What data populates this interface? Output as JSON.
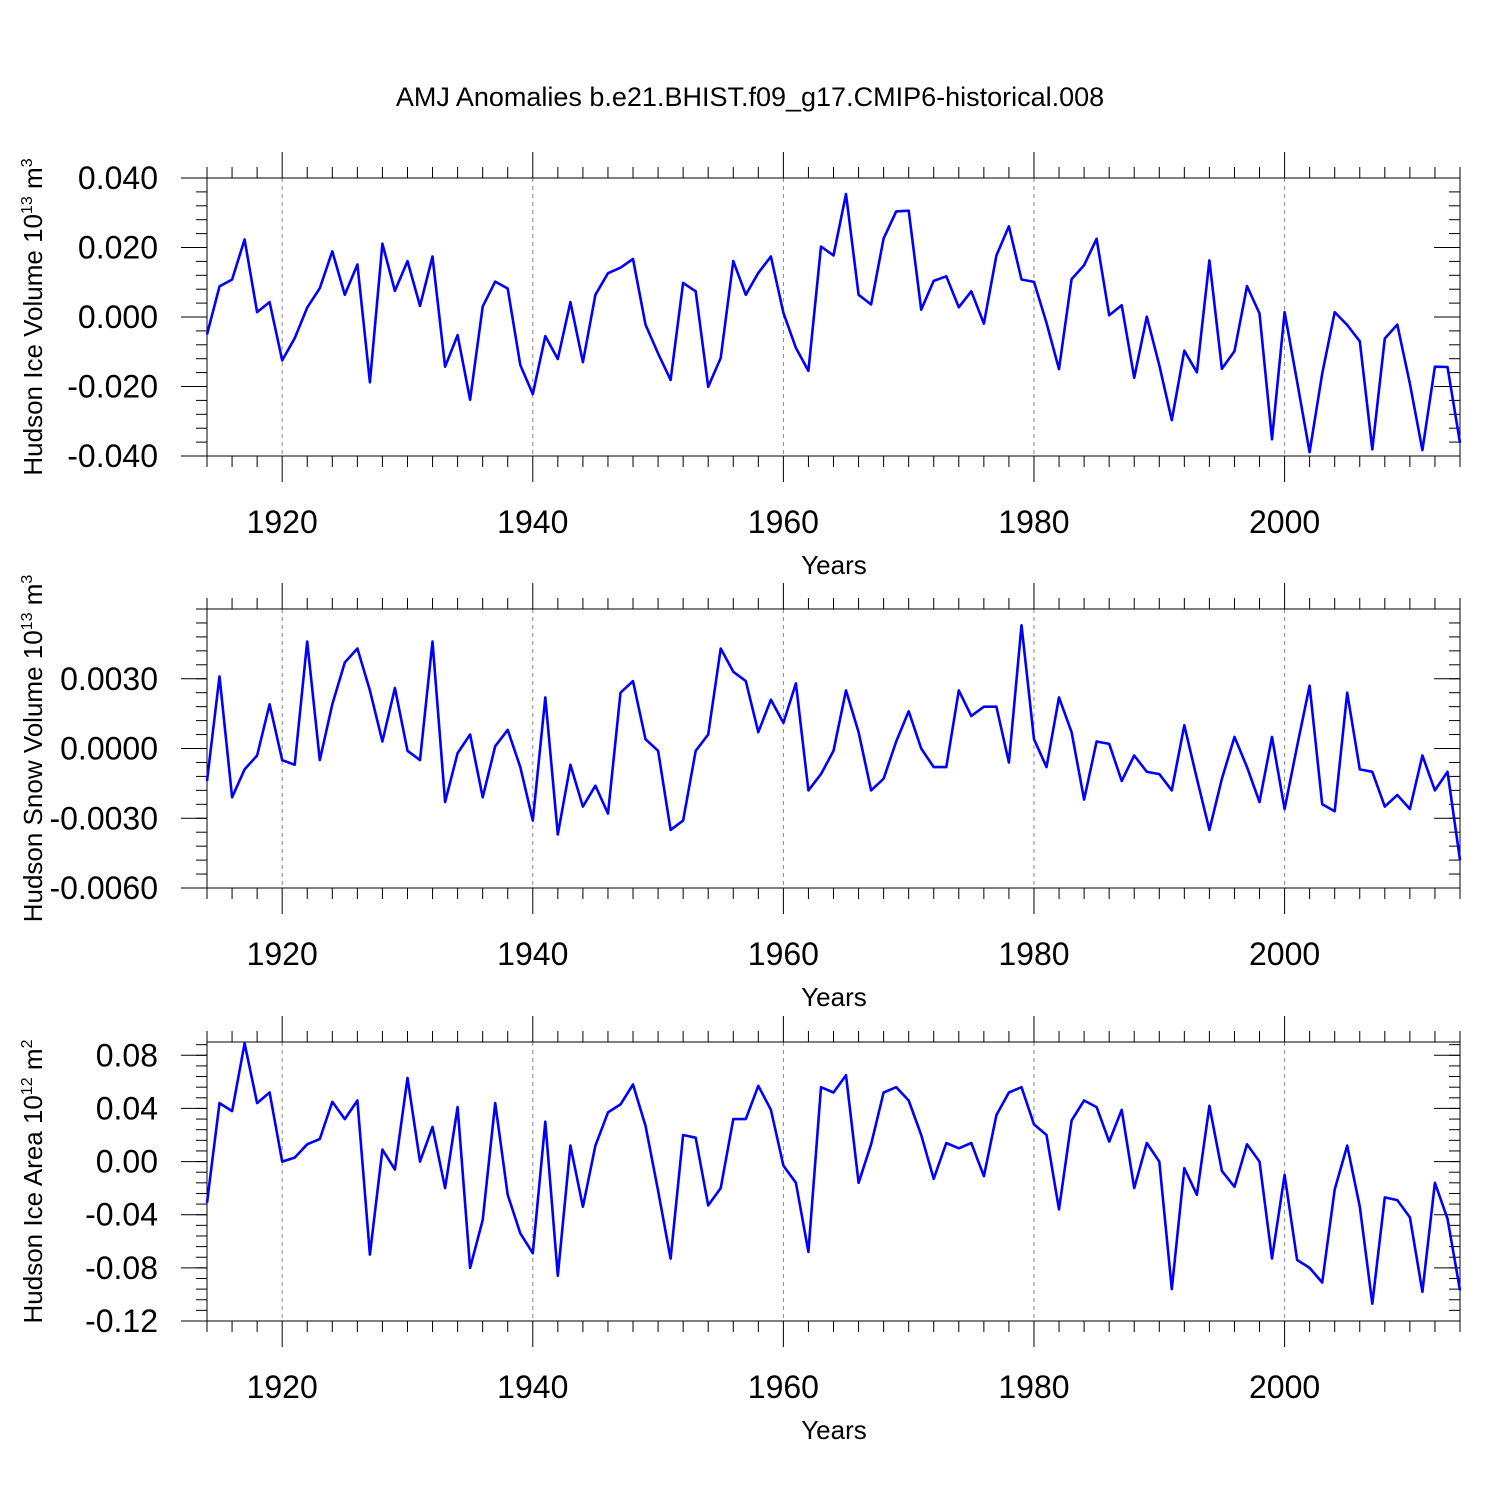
{
  "title": "AMJ Anomalies b.e21.BHIST.f09_g17.CMIP6-historical.008",
  "chart_data": [
    {
      "type": "line",
      "panel": "hudson-ice-volume",
      "title": "AMJ Anomalies b.e21.BHIST.f09_g17.CMIP6-historical.008",
      "xlabel": "Years",
      "ylabel_base": "Hudson Ice Volume 10",
      "ylabel_exp": "13",
      "ylabel_unit": " m",
      "ylabel_unit_exp": "3",
      "xlim": [
        1914,
        2014
      ],
      "ylim": [
        -0.04,
        0.04
      ],
      "x_ticks": [
        1920,
        1940,
        1960,
        1980,
        2000
      ],
      "x_tick_labels": [
        "1920",
        "1940",
        "1960",
        "1980",
        "2000"
      ],
      "y_ticks": [
        -0.04,
        -0.02,
        0.0,
        0.02,
        0.04
      ],
      "y_tick_labels": [
        "-0.040",
        "-0.020",
        "0.000",
        "0.020",
        "0.040"
      ],
      "y_minor_step": 0.004,
      "color": "#0000ff",
      "x_start": 1914,
      "values": [
        -0.005,
        0.0088,
        0.0108,
        0.0223,
        0.0014,
        0.0043,
        -0.0125,
        -0.0061,
        0.0027,
        0.0083,
        0.0189,
        0.0064,
        0.0151,
        -0.0188,
        0.0211,
        0.0075,
        0.0161,
        0.0032,
        0.0174,
        -0.0143,
        -0.0052,
        -0.0238,
        0.003,
        0.0102,
        0.0082,
        -0.0138,
        -0.0222,
        -0.0055,
        -0.0121,
        0.0043,
        -0.013,
        0.0064,
        0.0126,
        0.0142,
        0.0167,
        -0.0022,
        -0.0105,
        -0.0181,
        0.0098,
        0.0074,
        -0.0201,
        -0.0118,
        0.0161,
        0.0064,
        0.0127,
        0.0174,
        0.0012,
        -0.0089,
        -0.0155,
        0.0203,
        0.0177,
        0.0354,
        0.0064,
        0.0036,
        0.0226,
        0.0304,
        0.0306,
        0.0021,
        0.0104,
        0.0117,
        0.0028,
        0.0074,
        -0.0019,
        0.0177,
        0.0261,
        0.0108,
        0.0101,
        -0.0017,
        -0.015,
        0.0109,
        0.0149,
        0.0225,
        0.0005,
        0.0034,
        -0.0175,
        0.0001,
        -0.0139,
        -0.0297,
        -0.0097,
        -0.0159,
        0.0163,
        -0.0149,
        -0.0098,
        0.0089,
        0.001,
        -0.0352,
        0.0014,
        -0.0186,
        -0.0389,
        -0.0163,
        0.0014,
        -0.0023,
        -0.007,
        -0.0381,
        -0.0062,
        -0.0022,
        -0.0192,
        -0.0383,
        -0.0143,
        -0.0144,
        -0.0362
      ]
    },
    {
      "type": "line",
      "panel": "hudson-snow-volume",
      "xlabel": "Years",
      "ylabel_base": "Hudson Snow Volume 10",
      "ylabel_exp": "13",
      "ylabel_unit": " m",
      "ylabel_unit_exp": "3",
      "xlim": [
        1914,
        2014
      ],
      "ylim": [
        -0.006,
        0.006
      ],
      "x_ticks": [
        1920,
        1940,
        1960,
        1980,
        2000
      ],
      "x_tick_labels": [
        "1920",
        "1940",
        "1960",
        "1980",
        "2000"
      ],
      "y_ticks": [
        -0.006,
        -0.003,
        0.0,
        0.003
      ],
      "y_tick_labels": [
        "-0.0060",
        "-0.0030",
        "0.0000",
        "0.0030"
      ],
      "y_minor_step": 0.0006,
      "color": "#0000ff",
      "x_start": 1914,
      "values": [
        -0.0014,
        0.0031,
        -0.0021,
        -0.0009,
        -0.0003,
        0.0019,
        -0.0005,
        -0.0007,
        0.0046,
        -0.0005,
        0.0019,
        0.0037,
        0.0043,
        0.0025,
        0.0003,
        0.0026,
        -0.0001,
        -0.0005,
        0.0046,
        -0.0023,
        -0.0002,
        0.0006,
        -0.0021,
        0.0001,
        0.0008,
        -0.0008,
        -0.0031,
        0.0022,
        -0.0037,
        -0.0007,
        -0.0025,
        -0.0016,
        -0.0028,
        0.0024,
        0.0029,
        0.0004,
        -0.0001,
        -0.0035,
        -0.0031,
        -0.0001,
        0.0006,
        0.0043,
        0.0033,
        0.0029,
        0.0007,
        0.0021,
        0.0011,
        0.0028,
        -0.0018,
        -0.0011,
        -0.0001,
        0.0025,
        0.0007,
        -0.0018,
        -0.0013,
        0.0003,
        0.0016,
        0.0,
        -0.0008,
        -0.0008,
        0.0025,
        0.0014,
        0.0018,
        0.0018,
        -0.0006,
        0.0053,
        0.0004,
        -0.0008,
        0.0022,
        0.0007,
        -0.0022,
        0.0003,
        0.0002,
        -0.0014,
        -0.0003,
        -0.001,
        -0.0011,
        -0.0018,
        0.001,
        -0.0013,
        -0.0035,
        -0.0013,
        0.0005,
        -0.0008,
        -0.0023,
        0.0005,
        -0.0026,
        0.0001,
        0.0027,
        -0.0024,
        -0.0027,
        0.0024,
        -0.0009,
        -0.001,
        -0.0025,
        -0.002,
        -0.0026,
        -0.0003,
        -0.0018,
        -0.001,
        -0.0048
      ]
    },
    {
      "type": "line",
      "panel": "hudson-ice-area",
      "xlabel": "Years",
      "ylabel_base": "Hudson Ice Area 10",
      "ylabel_exp": "12",
      "ylabel_unit": " m",
      "ylabel_unit_exp": "2",
      "xlim": [
        1914,
        2014
      ],
      "ylim": [
        -0.12,
        0.09
      ],
      "x_ticks": [
        1920,
        1940,
        1960,
        1980,
        2000
      ],
      "x_tick_labels": [
        "1920",
        "1940",
        "1960",
        "1980",
        "2000"
      ],
      "y_ticks": [
        -0.12,
        -0.08,
        -0.04,
        0.0,
        0.04,
        0.08
      ],
      "y_tick_labels": [
        "-0.12",
        "-0.08",
        "-0.04",
        "0.00",
        "0.04",
        "0.08"
      ],
      "y_minor_step": 0.008,
      "color": "#0000ff",
      "x_start": 1914,
      "values": [
        -0.031,
        0.044,
        0.038,
        0.089,
        0.044,
        0.052,
        0.0,
        0.003,
        0.013,
        0.017,
        0.045,
        0.032,
        0.046,
        -0.07,
        0.009,
        -0.006,
        0.063,
        0.0,
        0.026,
        -0.02,
        0.041,
        -0.08,
        -0.044,
        0.044,
        -0.025,
        -0.054,
        -0.069,
        0.03,
        -0.086,
        0.012,
        -0.034,
        0.012,
        0.037,
        0.043,
        0.058,
        0.027,
        -0.022,
        -0.073,
        0.02,
        0.018,
        -0.033,
        -0.02,
        0.032,
        0.032,
        0.057,
        0.039,
        -0.003,
        -0.016,
        -0.068,
        0.056,
        0.052,
        0.065,
        -0.016,
        0.013,
        0.052,
        0.056,
        0.046,
        0.02,
        -0.013,
        0.014,
        0.01,
        0.014,
        -0.011,
        0.035,
        0.052,
        0.056,
        0.028,
        0.02,
        -0.036,
        0.031,
        0.046,
        0.041,
        0.015,
        0.039,
        -0.02,
        0.014,
        0.0,
        -0.096,
        -0.005,
        -0.025,
        0.042,
        -0.007,
        -0.019,
        0.013,
        0.0,
        -0.073,
        -0.01,
        -0.074,
        -0.08,
        -0.091,
        -0.021,
        0.012,
        -0.034,
        -0.107,
        -0.027,
        -0.029,
        -0.042,
        -0.098,
        -0.016,
        -0.043,
        -0.097
      ]
    }
  ]
}
